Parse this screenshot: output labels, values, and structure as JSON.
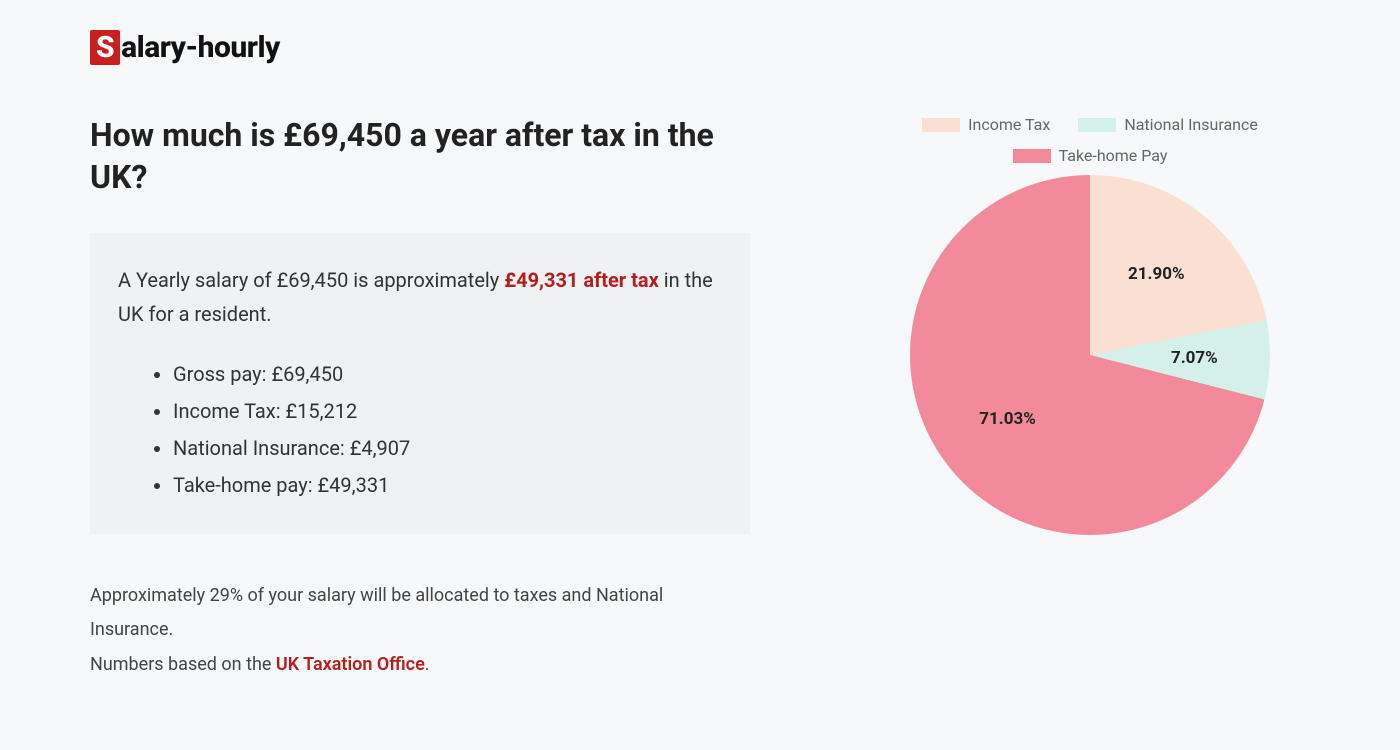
{
  "logo": {
    "s": "S",
    "rest": "alary-hourly"
  },
  "heading": "How much is £69,450 a year after tax in the UK?",
  "summary": {
    "prefix": "A Yearly salary of £69,450 is approximately ",
    "highlight": "£49,331 after tax",
    "suffix": " in the UK for a resident."
  },
  "breakdown": [
    "Gross pay: £69,450",
    "Income Tax: £15,212",
    "National Insurance: £4,907",
    "Take-home pay: £49,331"
  ],
  "footer": {
    "line1": "Approximately 29% of your salary will be allocated to taxes and National Insurance.",
    "line2_prefix": "Numbers based on the ",
    "line2_link": "UK Taxation Office",
    "line2_suffix": "."
  },
  "chart": {
    "type": "pie",
    "background_color": "#f6f8f9",
    "label_fontsize": 17,
    "label_fontweight": 700,
    "label_color": "#222222",
    "legend_fontsize": 16,
    "legend_color": "#666666",
    "slices": [
      {
        "label": "Income Tax",
        "value": 21.9,
        "display": "21.90%",
        "color": "#f9e0d3"
      },
      {
        "label": "National Insurance",
        "value": 7.07,
        "display": "7.07%",
        "color": "#d4f0ea"
      },
      {
        "label": "Take-home Pay",
        "value": 71.03,
        "display": "71.03%",
        "color": "#f28a9b"
      }
    ]
  }
}
